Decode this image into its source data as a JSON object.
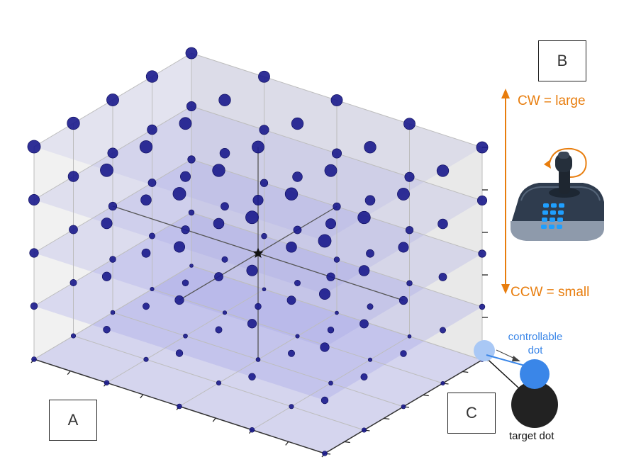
{
  "panels": {
    "a_label": "A",
    "b_label": "B",
    "c_label": "C"
  },
  "joystick": {
    "cw_label": "CW = large",
    "ccw_label": "CCW = small",
    "accent_color": "#e87d0d"
  },
  "dots": {
    "controllable_label_line1": "controllable",
    "controllable_label_line2": "dot",
    "target_label": "target dot",
    "controllable_color": "#3a86e8",
    "target_color": "#222222"
  },
  "grid": {
    "levels": 5,
    "dot_color": "#1a1a8c",
    "plane_color": "#9a9ae8",
    "center_marker": "star-icon"
  }
}
